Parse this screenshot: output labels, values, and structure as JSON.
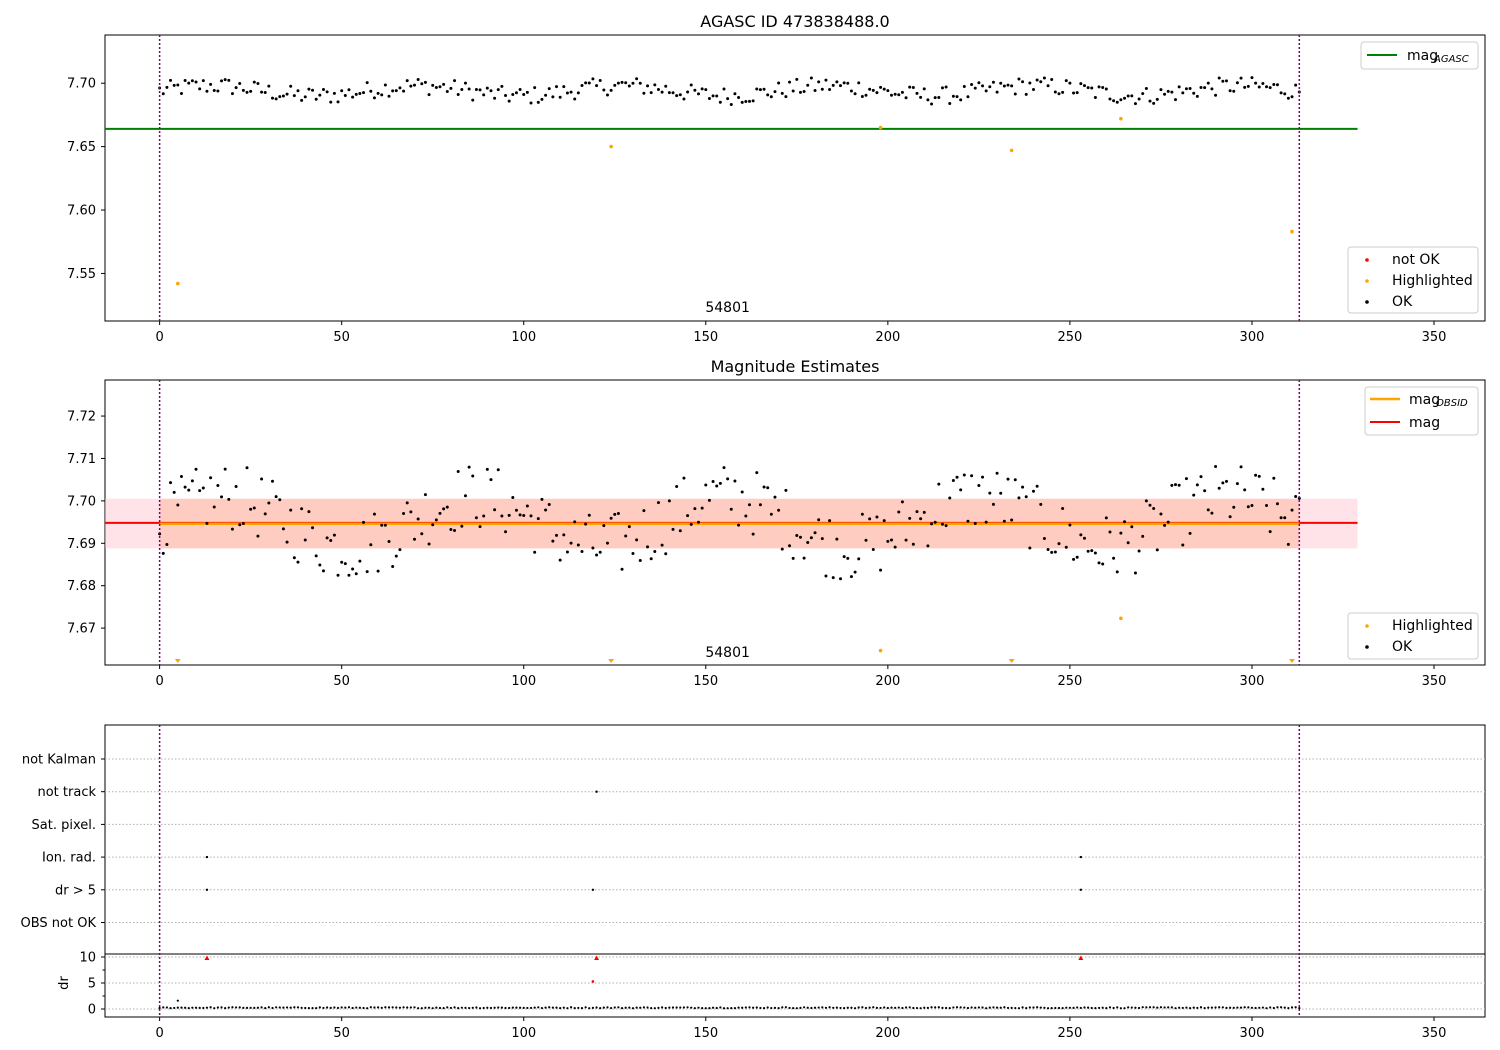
{
  "colors": {
    "ok": "#000000",
    "highlighted": "#ffa500",
    "not_ok": "#ff0000",
    "mag_agasc": "#008000",
    "mag_obsid": "#ffa500",
    "mag": "#ff0000",
    "band_mag": "#ffc0cb",
    "band_obsid": "#ffa07a",
    "interval_line": "#800080",
    "grid": "#b0b0b0"
  },
  "chart_data": [
    {
      "type": "scatter",
      "title": "AGASC ID 473838488.0",
      "xlim": [
        -15,
        364
      ],
      "ylim": [
        7.5125,
        7.738
      ],
      "x_ticks": [
        "0",
        "50",
        "100",
        "150",
        "200",
        "250",
        "300",
        "350"
      ],
      "y_ticks": [
        "7.55",
        "7.60",
        "7.65",
        "7.70"
      ],
      "annotation": "54801",
      "observation_boundaries": [
        0,
        313
      ],
      "reference_lines": [
        {
          "name": "mag_AGASC",
          "y": 7.664,
          "x_range": [
            -15,
            329
          ]
        }
      ],
      "legend_upper_right": {
        "main": "mag",
        "sub": "AGASC"
      },
      "legend_lower_right": [
        "not OK",
        "Highlighted",
        "OK"
      ],
      "series_highlighted": [
        {
          "x": 5,
          "y": 7.542
        },
        {
          "x": 124,
          "y": 7.65
        },
        {
          "x": 198,
          "y": 7.665
        },
        {
          "x": 234,
          "y": 7.647
        },
        {
          "x": 264,
          "y": 7.672
        },
        {
          "x": 311,
          "y": 7.583
        }
      ],
      "series_ok_note": "OK points fluctuate around y ≈ 7.694 with amplitude ≈ ±0.012 for x from 0 to 313"
    },
    {
      "type": "scatter",
      "title": "Magnitude Estimates",
      "xlim": [
        -15,
        364
      ],
      "ylim": [
        7.6613,
        7.7285
      ],
      "x_ticks": [
        "0",
        "50",
        "100",
        "150",
        "200",
        "250",
        "300",
        "350"
      ],
      "y_ticks": [
        "7.67",
        "7.68",
        "7.69",
        "7.70",
        "7.71",
        "7.72"
      ],
      "annotation": "54801",
      "observation_boundaries": [
        0,
        313
      ],
      "mag_line": 7.6948,
      "mag_obsid_line": 7.6946,
      "band_mag": [
        7.6888,
        7.7005
      ],
      "band_obsid": [
        7.6888,
        7.7005
      ],
      "band_x_range": [
        -15,
        329
      ],
      "legend_upper_right": [
        {
          "main": "mag",
          "sub": "OBSID"
        },
        {
          "main": "mag",
          "sub": ""
        }
      ],
      "legend_lower_right": [
        "Highlighted",
        "OK"
      ],
      "series_highlighted": [
        {
          "x": 198,
          "y": 7.6647
        },
        {
          "x": 264,
          "y": 7.6723
        }
      ],
      "series_below_range_markers_x": [
        5,
        124,
        234,
        311
      ],
      "series_ok_note": "OK points fluctuate around y ≈ 7.695 with amplitude ≈ ±0.012 for x from 0 to 313"
    },
    {
      "type": "scatter",
      "title": "",
      "xlim": [
        -15,
        364
      ],
      "x_ticks": [
        "0",
        "50",
        "100",
        "150",
        "200",
        "250",
        "300",
        "350"
      ],
      "observation_boundaries": [
        0,
        313
      ],
      "flag_rows": [
        "not Kalman",
        "not track",
        "Sat. pixel.",
        "Ion. rad.",
        "dr > 5",
        "OBS not OK"
      ],
      "flag_points": [
        {
          "row": "not track",
          "x": 120
        },
        {
          "row": "Ion. rad.",
          "x": 13
        },
        {
          "row": "Ion. rad.",
          "x": 253
        },
        {
          "row": "dr > 5",
          "x": 13
        },
        {
          "row": "dr > 5",
          "x": 119
        },
        {
          "row": "dr > 5",
          "x": 253
        }
      ],
      "dr_panel": {
        "ylabel": "dr",
        "y_ticks": [
          "0",
          "5",
          "10"
        ],
        "ylim": [
          -0.5,
          12
        ],
        "red_points": [
          {
            "x": 13,
            "y": 9.8
          },
          {
            "x": 120,
            "y": 9.8
          },
          {
            "x": 253,
            "y": 9.8
          },
          {
            "x": 119,
            "y": 5.3
          }
        ],
        "other_points": [
          {
            "x": 5,
            "y": 1.6
          }
        ],
        "baseline_note": "Black points near dr ≈ 0.1–0.3 for x from 0 to 313"
      }
    }
  ]
}
